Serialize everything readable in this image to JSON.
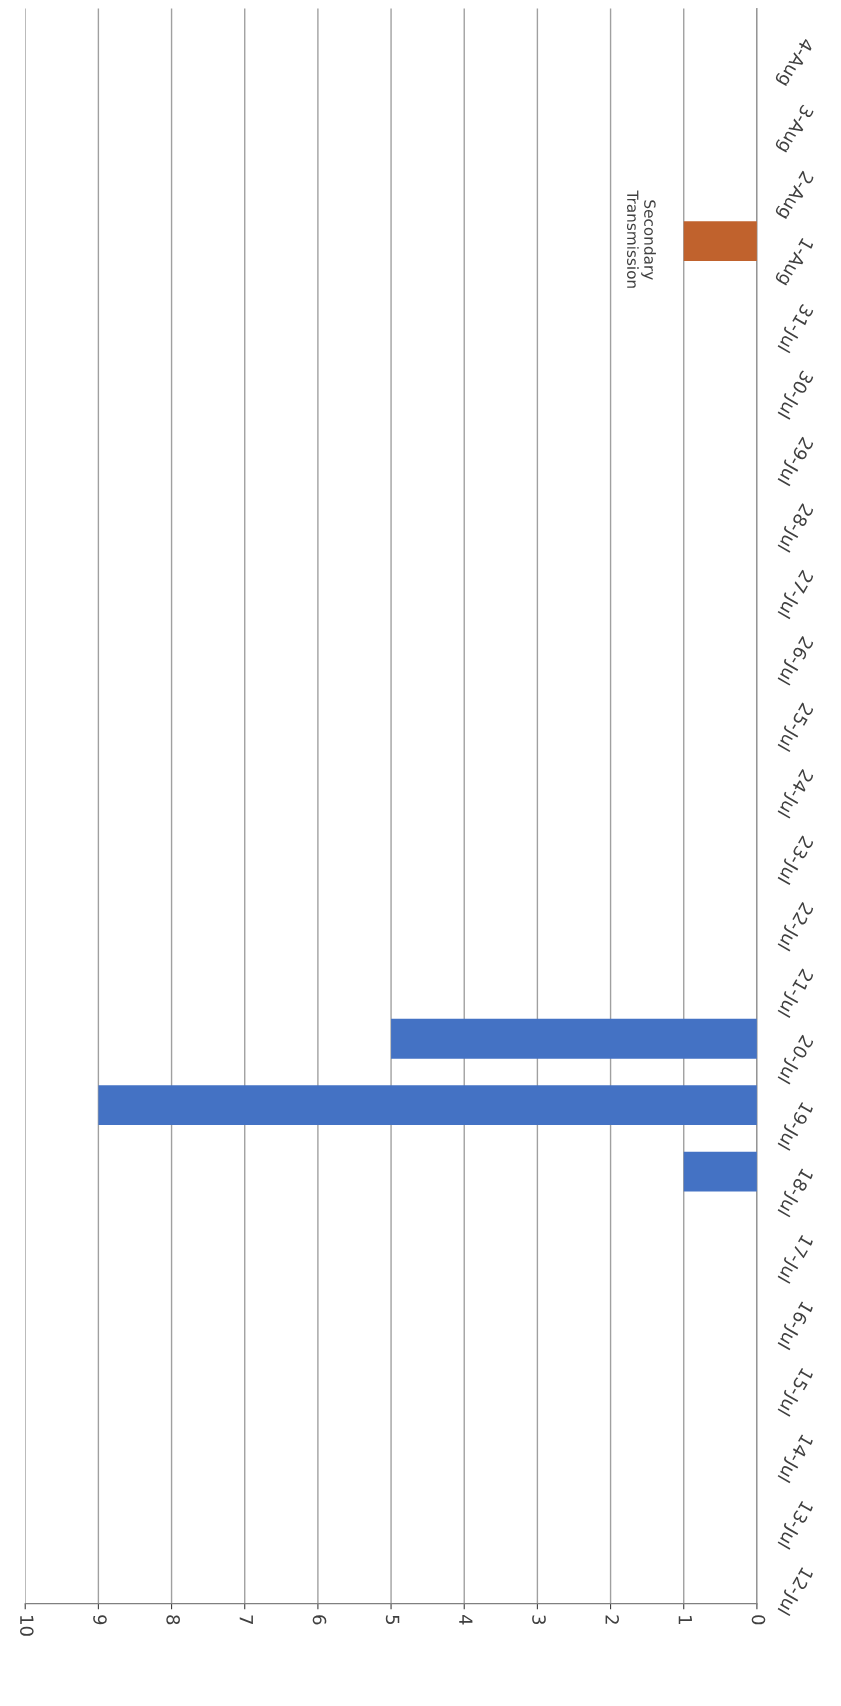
{
  "chart_data": {
    "type": "bar",
    "orientation": "horizontal",
    "categories": [
      "4-Aug",
      "3-Aug",
      "2-Aug",
      "1-Aug",
      "31-Jul",
      "30-Jul",
      "29-Jul",
      "28-Jul",
      "27-Jul",
      "26-Jul",
      "25-Jul",
      "24-Jul",
      "23-Jul",
      "22-Jul",
      "21-Jul",
      "20-Jul",
      "19-Jul",
      "18-Jul",
      "17-Jul",
      "16-Jul",
      "15-Jul",
      "14-Jul",
      "13-Jul",
      "12-Jul"
    ],
    "values": [
      0,
      0,
      0,
      1,
      0,
      0,
      0,
      0,
      0,
      0,
      0,
      0,
      0,
      0,
      0,
      5,
      9,
      1,
      0,
      0,
      0,
      0,
      0,
      0
    ],
    "colors": [
      "#4472c4",
      "#4472c4",
      "#4472c4",
      "#c0622d",
      "#4472c4",
      "#4472c4",
      "#4472c4",
      "#4472c4",
      "#4472c4",
      "#4472c4",
      "#4472c4",
      "#4472c4",
      "#4472c4",
      "#4472c4",
      "#4472c4",
      "#4472c4",
      "#4472c4",
      "#4472c4",
      "#4472c4",
      "#4472c4",
      "#4472c4",
      "#4472c4",
      "#4472c4",
      "#4472c4"
    ],
    "xlim": [
      10,
      0
    ],
    "xticks": [
      0,
      1,
      2,
      3,
      4,
      5,
      6,
      7,
      8,
      9,
      10
    ],
    "grid": "x",
    "annotations": [
      "Secondary\nTransmission"
    ]
  }
}
